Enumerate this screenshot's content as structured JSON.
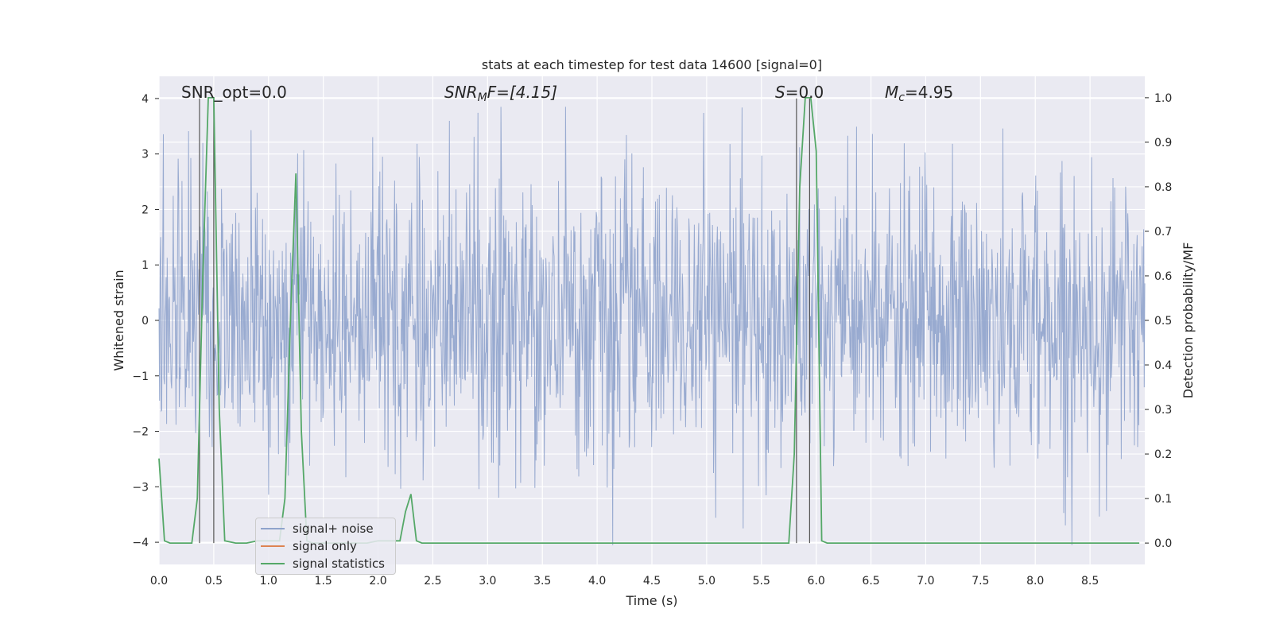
{
  "chart_data": {
    "type": "line",
    "title": "stats at each timestep for test data 14600 [signal=0]",
    "xlabel": "Time (s)",
    "ylabel": "Whitened strain",
    "y2label": "Detection probability/MF",
    "xlim": [
      0,
      9
    ],
    "ylim": [
      -4.4,
      4.4
    ],
    "y2lim": [
      -0.048,
      1.048
    ],
    "x_ticks": [
      "0.0",
      "0.5",
      "1.0",
      "1.5",
      "2.0",
      "2.5",
      "3.0",
      "3.5",
      "4.0",
      "4.5",
      "5.0",
      "5.5",
      "6.0",
      "6.5",
      "7.0",
      "7.5",
      "8.0",
      "8.5"
    ],
    "y_ticks": [
      "4",
      "3",
      "2",
      "1",
      "0",
      "−1",
      "−2",
      "−3",
      "−4"
    ],
    "y2_ticks": [
      "1.0",
      "0.9",
      "0.8",
      "0.7",
      "0.6",
      "0.5",
      "0.4",
      "0.3",
      "0.2",
      "0.1",
      "0.0"
    ],
    "grid": true,
    "annotations": {
      "snr_opt": "SNR_opt=0.0",
      "snr_mf_label": "SNR",
      "snr_mf_sub": "M",
      "snr_mf_rest": "F=[4.15]",
      "s_label": "S",
      "s_rest": "=0.0",
      "mc_label": "M",
      "mc_sub": "c",
      "mc_rest": "=4.95"
    },
    "vertical_lines_x": [
      0.37,
      0.5,
      5.82,
      5.94
    ],
    "series": [
      {
        "name": "signal+ noise",
        "color": "#8fa3cc",
        "description_envelope": {
          "typical_range": [
            -2.6,
            2.6
          ],
          "peak_max": 3.85,
          "peak_min": -4.05
        }
      },
      {
        "name": "signal only",
        "color": "#dd8452",
        "values": []
      },
      {
        "name": "signal statistics",
        "color": "#55a868",
        "axis": "right",
        "x": [
          0.0,
          0.05,
          0.1,
          0.2,
          0.3,
          0.35,
          0.4,
          0.45,
          0.5,
          0.55,
          0.6,
          0.7,
          0.8,
          0.9,
          1.0,
          1.1,
          1.15,
          1.2,
          1.25,
          1.3,
          1.35,
          1.4,
          1.5,
          1.6,
          1.7,
          1.8,
          1.9,
          2.0,
          2.1,
          2.2,
          2.25,
          2.3,
          2.35,
          2.4,
          2.5,
          3.0,
          3.5,
          4.0,
          4.5,
          5.0,
          5.5,
          5.75,
          5.8,
          5.85,
          5.9,
          5.95,
          6.0,
          6.05,
          6.1,
          6.5,
          7.0,
          7.5,
          8.0,
          8.5,
          8.95
        ],
        "values": [
          0.19,
          0.005,
          0.0,
          0.0,
          0.0,
          0.1,
          0.6,
          1.0,
          1.0,
          0.3,
          0.005,
          0.0,
          0.0,
          0.005,
          0.005,
          0.005,
          0.1,
          0.5,
          0.83,
          0.25,
          0.005,
          0.0,
          0.0,
          0.0,
          0.0,
          0.0,
          0.0,
          0.005,
          0.005,
          0.005,
          0.07,
          0.11,
          0.005,
          0.0,
          0.0,
          0.0,
          0.0,
          0.0,
          0.0,
          0.0,
          0.0,
          0.0,
          0.2,
          0.8,
          1.0,
          1.0,
          0.88,
          0.005,
          0.0,
          0.0,
          0.0,
          0.0,
          0.0,
          0.0,
          0.0
        ]
      }
    ]
  }
}
